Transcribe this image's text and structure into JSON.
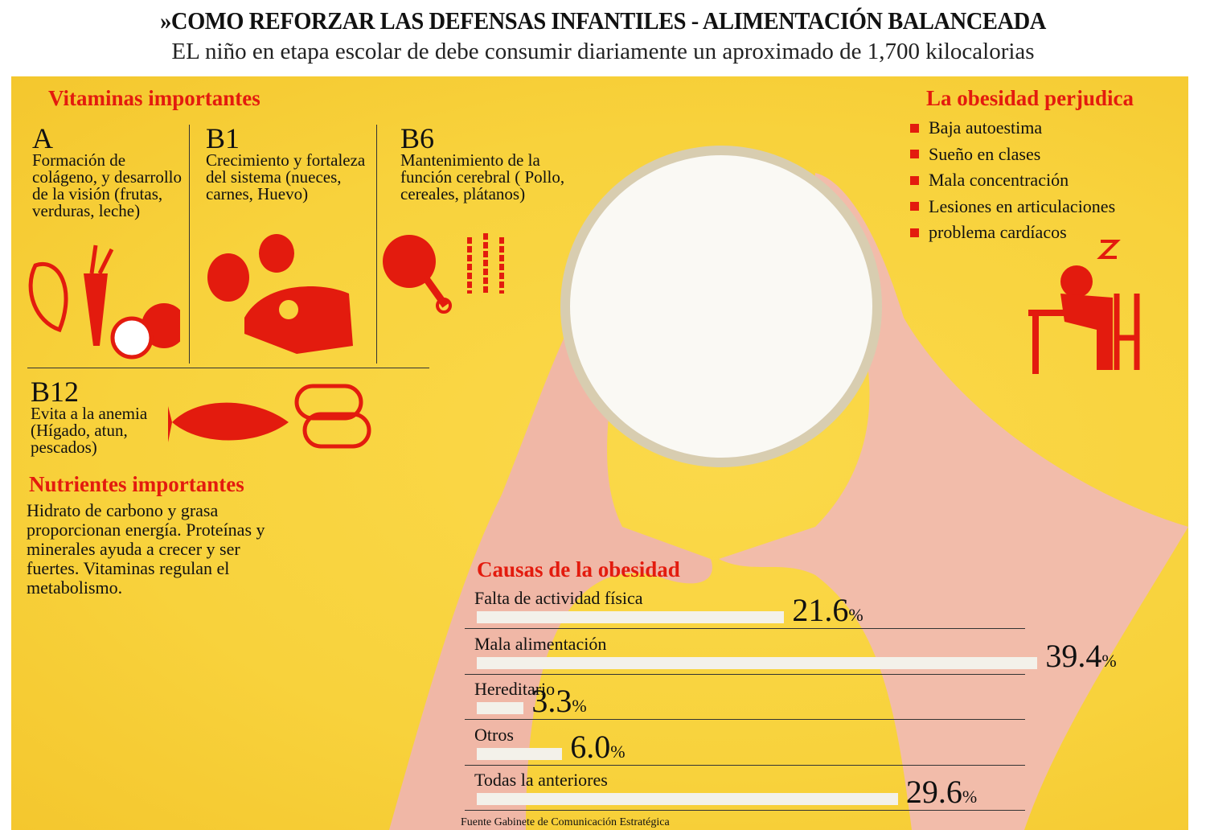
{
  "header": {
    "title": "»COMO REFORZAR LAS DEFENSAS INFANTILES - ALIMENTACIÓN BALANCEADA",
    "subtitle": "EL niño en etapa escolar de debe consumir diariamente un aproximado de 1,700 kilocalorias"
  },
  "vitamins": {
    "heading": "Vitaminas importantes",
    "items": [
      {
        "letter": "A",
        "text": "Formación de colágeno, y desarrollo de la visión (frutas, verduras, leche)",
        "icon": "vegetables-fruit-icon"
      },
      {
        "letter": "B1",
        "text": "Crecimiento y fortaleza del sistema (nueces, carnes, Huevo)",
        "icon": "nuts-meat-icon"
      },
      {
        "letter": "B6",
        "text": "Mantenimiento de la función cerebral ( Pollo, cereales, plátanos)",
        "icon": "chicken-wheat-icon"
      },
      {
        "letter": "B12",
        "text": "Evita a la anemia (Hígado, atun, pescados)",
        "icon": "fish-can-icon"
      }
    ]
  },
  "nutrients": {
    "heading": "Nutrientes importantes",
    "text": "Hidrato de carbono y grasa proporcionan energía. Proteínas y minerales ayuda a crecer y ser fuertes. Vitaminas regulan el metabolismo."
  },
  "obesity": {
    "heading": "La obesidad perjudica",
    "items": [
      "Baja autoestima",
      "Sueño en clases",
      "Mala concentración",
      "Lesiones en articulaciones",
      "problema cardíacos"
    ],
    "icon": "sleeping-student-icon"
  },
  "colors": {
    "accent": "#e31b0e",
    "background": "#f8d23c",
    "bar": "#f3f1ea"
  },
  "chart_data": {
    "type": "bar",
    "orientation": "horizontal",
    "title": "Causas de la obesidad",
    "categories": [
      "Falta de actividad física",
      "Mala alimentación",
      "Hereditario",
      "Otros",
      "Todas la anteriores"
    ],
    "values": [
      21.6,
      39.4,
      3.3,
      6.0,
      29.6
    ],
    "value_labels": [
      "21.6",
      "39.4",
      "3.3",
      "6.0",
      "29.6"
    ],
    "unit": "%",
    "source": "Fuente Gabinete de Comunicación Estratégica"
  }
}
